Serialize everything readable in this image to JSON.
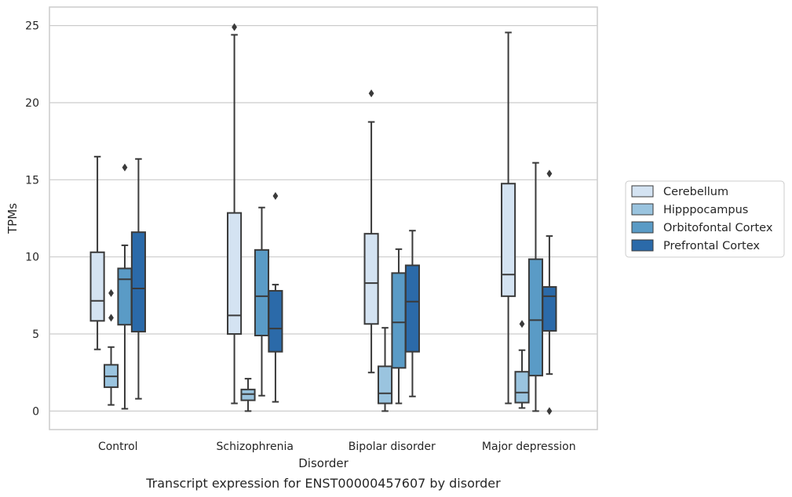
{
  "caption": "Transcript expression for ENST00000457607 by disorder",
  "chart_data": {
    "type": "box",
    "xlabel": "Disorder",
    "ylabel": "TPMs",
    "ylim": [
      -1.2,
      26.2
    ],
    "yticks": [
      0,
      5,
      10,
      15,
      20,
      25
    ],
    "ytick_labels": [
      "0",
      "5",
      "10",
      "15",
      "20",
      "25"
    ],
    "grid": "horizontal",
    "legend_position": "right",
    "categories": [
      "Control",
      "Schizophrenia",
      "Bipolar disorder",
      "Major depression"
    ],
    "series": [
      {
        "name": "Cerebellum",
        "color": "#d4e3f2",
        "boxes": [
          {
            "whislo": 4.0,
            "q1": 5.85,
            "med": 7.15,
            "q3": 10.3,
            "whishi": 16.5,
            "fliers": []
          },
          {
            "whislo": 0.5,
            "q1": 5.0,
            "med": 6.2,
            "q3": 12.85,
            "whishi": 24.4,
            "fliers": [
              24.9
            ]
          },
          {
            "whislo": 2.5,
            "q1": 5.65,
            "med": 8.3,
            "q3": 11.5,
            "whishi": 18.75,
            "fliers": [
              20.6
            ]
          },
          {
            "whislo": 0.5,
            "q1": 7.45,
            "med": 8.85,
            "q3": 14.75,
            "whishi": 24.55,
            "fliers": []
          }
        ]
      },
      {
        "name": "Hipppocampus",
        "color": "#9ac4df",
        "boxes": [
          {
            "whislo": 0.4,
            "q1": 1.55,
            "med": 2.25,
            "q3": 3.0,
            "whishi": 4.15,
            "fliers": [
              6.05,
              7.65
            ]
          },
          {
            "whislo": 0.0,
            "q1": 0.7,
            "med": 1.1,
            "q3": 1.4,
            "whishi": 2.1,
            "fliers": []
          },
          {
            "whislo": 0.0,
            "q1": 0.5,
            "med": 1.15,
            "q3": 2.9,
            "whishi": 5.4,
            "fliers": []
          },
          {
            "whislo": 0.2,
            "q1": 0.55,
            "med": 1.2,
            "q3": 2.55,
            "whishi": 3.95,
            "fliers": [
              5.65
            ]
          }
        ]
      },
      {
        "name": "Orbitofontal Cortex",
        "color": "#5a9bc6",
        "boxes": [
          {
            "whislo": 0.15,
            "q1": 5.6,
            "med": 8.55,
            "q3": 9.25,
            "whishi": 10.75,
            "fliers": [
              15.8
            ]
          },
          {
            "whislo": 1.0,
            "q1": 4.9,
            "med": 7.45,
            "q3": 10.45,
            "whishi": 13.2,
            "fliers": []
          },
          {
            "whislo": 0.5,
            "q1": 2.8,
            "med": 5.75,
            "q3": 8.95,
            "whishi": 10.5,
            "fliers": []
          },
          {
            "whislo": 0.0,
            "q1": 2.3,
            "med": 5.9,
            "q3": 9.85,
            "whishi": 16.1,
            "fliers": []
          }
        ]
      },
      {
        "name": "Prefrontal Cortex",
        "color": "#2b6aa9",
        "boxes": [
          {
            "whislo": 0.8,
            "q1": 5.15,
            "med": 7.95,
            "q3": 11.6,
            "whishi": 16.35,
            "fliers": []
          },
          {
            "whislo": 0.6,
            "q1": 3.85,
            "med": 5.35,
            "q3": 7.8,
            "whishi": 8.2,
            "fliers": [
              13.95
            ]
          },
          {
            "whislo": 0.95,
            "q1": 3.85,
            "med": 7.1,
            "q3": 9.45,
            "whishi": 11.7,
            "fliers": []
          },
          {
            "whislo": 2.4,
            "q1": 5.2,
            "med": 7.45,
            "q3": 8.05,
            "whishi": 11.35,
            "fliers": [
              15.4,
              0.0
            ]
          }
        ]
      }
    ]
  }
}
